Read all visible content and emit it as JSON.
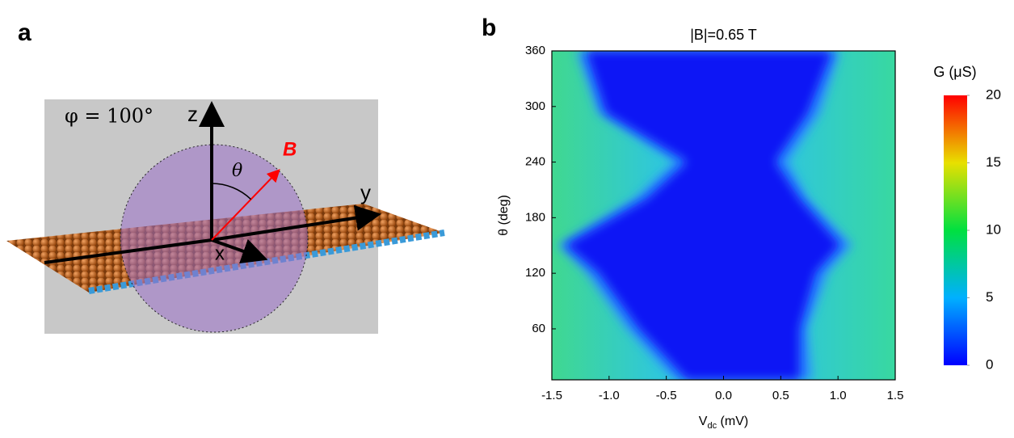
{
  "panel_a": {
    "label": "a",
    "plane_label": "φ = 100°",
    "z_axis": "z",
    "y_axis": "y",
    "x_axis": "x",
    "angle": "θ",
    "field": "B"
  },
  "panel_b": {
    "label": "b"
  },
  "chart_data": {
    "type": "heatmap",
    "title": "|B|=0.65 T",
    "x_label": {
      "main": "V",
      "sub": "dc",
      "unit": " (mV)"
    },
    "y_label": "θ (deg)",
    "xlim": [
      -1.5,
      1.5
    ],
    "xticks": [
      -1.5,
      {
        "value": -1.0,
        "label": "-1.0"
      },
      -0.5,
      {
        "value": 0,
        "label": "0.0"
      },
      0.5,
      {
        "value": 1.0,
        "label": "1.0"
      },
      1.5
    ],
    "ylim": [
      5,
      360
    ],
    "yticks": [
      60,
      120,
      180,
      240,
      300,
      360
    ],
    "colorbar_label": "G (μS)",
    "clim": [
      0,
      20
    ],
    "cticks": [
      0,
      5,
      10,
      15,
      20
    ]
  }
}
